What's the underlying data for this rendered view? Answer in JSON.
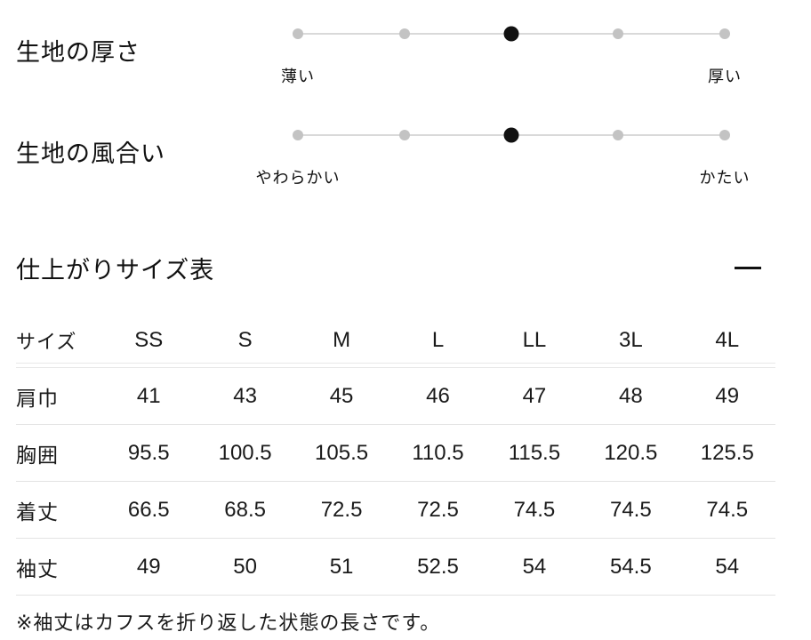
{
  "fabric_scales": {
    "rows": [
      {
        "label": "生地の厚さ",
        "left_label": "薄い",
        "right_label": "厚い",
        "steps": 5,
        "active_index": 2
      },
      {
        "label": "生地の風合い",
        "left_label": "やわらかい",
        "right_label": "かたい",
        "steps": 5,
        "active_index": 2
      }
    ]
  },
  "size_section": {
    "title": "仕上がりサイズ表",
    "collapse_icon": "minus",
    "table": {
      "columns": [
        "サイズ",
        "SS",
        "S",
        "M",
        "L",
        "LL",
        "3L",
        "4L"
      ],
      "rows": [
        {
          "label": "肩巾",
          "values": [
            "41",
            "43",
            "45",
            "46",
            "47",
            "48",
            "49"
          ]
        },
        {
          "label": "胸囲",
          "values": [
            "95.5",
            "100.5",
            "105.5",
            "110.5",
            "115.5",
            "120.5",
            "125.5"
          ]
        },
        {
          "label": "着丈",
          "values": [
            "66.5",
            "68.5",
            "72.5",
            "72.5",
            "74.5",
            "74.5",
            "74.5"
          ]
        },
        {
          "label": "袖丈",
          "values": [
            "49",
            "50",
            "51",
            "52.5",
            "54",
            "54.5",
            "54"
          ]
        }
      ]
    },
    "note": "※袖丈はカフスを折り返した状態の長さです。"
  },
  "colors": {
    "text": "#1a1a1a",
    "active_dot": "#111111",
    "inactive_dot": "#c3c3c3",
    "track": "#d9d9d9",
    "table_border": "#e3e3e3"
  }
}
